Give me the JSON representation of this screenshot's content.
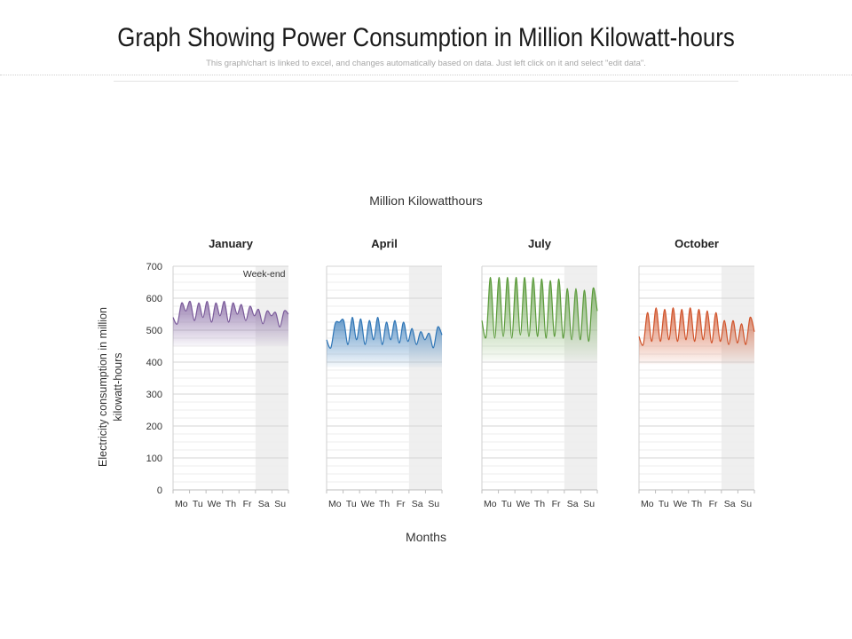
{
  "page": {
    "title": "Graph Showing Power Consumption in Million Kilowatt-hours",
    "subtitle": "This graph/chart is linked to excel, and changes automatically  based on data. Just left click on it and select \"edit data\"."
  },
  "chart_data": {
    "type": "area",
    "title": "Million Kilowatthours",
    "xlabel": "Months",
    "ylabel": "Electricity consumption in million kilowatt-hours",
    "ylim": [
      0,
      700
    ],
    "yticks": [
      0,
      100,
      200,
      300,
      400,
      500,
      600,
      700
    ],
    "day_labels": [
      "Mo",
      "Tu",
      "We",
      "Th",
      "Fr",
      "Sa",
      "Su"
    ],
    "weekend_label": "Week-end",
    "grid": true,
    "panels": [
      {
        "name": "January",
        "color": "#7a5a9a",
        "values": [
          540,
          520,
          585,
          560,
          590,
          530,
          585,
          540,
          590,
          525,
          585,
          545,
          590,
          525,
          585,
          550,
          580,
          530,
          575,
          545,
          565,
          520,
          560,
          545,
          555,
          510,
          560,
          550
        ]
      },
      {
        "name": "April",
        "color": "#2e75b6",
        "values": [
          470,
          445,
          520,
          525,
          530,
          455,
          540,
          470,
          535,
          455,
          530,
          470,
          540,
          455,
          525,
          470,
          530,
          460,
          525,
          465,
          505,
          455,
          495,
          470,
          490,
          445,
          510,
          485
        ]
      },
      {
        "name": "July",
        "color": "#5a9a3a",
        "values": [
          530,
          480,
          665,
          475,
          665,
          480,
          665,
          475,
          665,
          485,
          665,
          480,
          665,
          480,
          660,
          475,
          655,
          480,
          660,
          475,
          630,
          470,
          630,
          470,
          625,
          465,
          630,
          560
        ]
      },
      {
        "name": "October",
        "color": "#d0532a",
        "values": [
          480,
          455,
          555,
          465,
          570,
          465,
          565,
          470,
          570,
          465,
          565,
          470,
          570,
          465,
          565,
          470,
          560,
          460,
          555,
          465,
          530,
          455,
          530,
          460,
          520,
          455,
          540,
          495
        ]
      }
    ]
  }
}
